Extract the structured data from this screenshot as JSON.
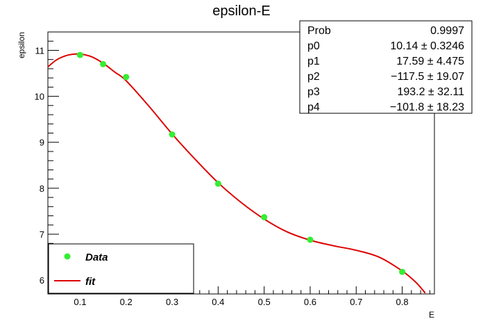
{
  "chart_data": {
    "type": "scatter",
    "title": "epsilon-E",
    "xlabel": "E",
    "ylabel": "epsilon",
    "xlim": [
      0.03,
      0.87
    ],
    "ylim": [
      5.7,
      11.4
    ],
    "x_ticks": [
      0.1,
      0.2,
      0.3,
      0.4,
      0.5,
      0.6,
      0.7,
      0.8
    ],
    "x_tick_labels": [
      "0.1",
      "0.2",
      "0.3",
      "0.4",
      "0.5",
      "0.6",
      "0.7",
      "0.8"
    ],
    "y_ticks": [
      6,
      7,
      8,
      9,
      10,
      11
    ],
    "y_tick_labels": [
      "6",
      "7",
      "8",
      "9",
      "10",
      "11"
    ],
    "grid": false,
    "series": [
      {
        "name": "Data",
        "kind": "markers",
        "color": "#33ee33",
        "x": [
          0.1,
          0.15,
          0.2,
          0.3,
          0.4,
          0.5,
          0.6,
          0.8
        ],
        "y": [
          10.9,
          10.7,
          10.42,
          9.17,
          8.1,
          7.37,
          6.88,
          6.18
        ]
      },
      {
        "name": "fit",
        "kind": "line",
        "color": "#dd0000",
        "x": [
          0.03,
          0.05,
          0.075,
          0.1,
          0.125,
          0.15,
          0.175,
          0.2,
          0.25,
          0.3,
          0.35,
          0.4,
          0.45,
          0.5,
          0.55,
          0.6,
          0.65,
          0.7,
          0.75,
          0.8,
          0.83,
          0.85
        ],
        "y": [
          10.64,
          10.8,
          10.9,
          10.92,
          10.86,
          10.72,
          10.53,
          10.34,
          9.78,
          9.18,
          8.63,
          8.12,
          7.69,
          7.33,
          7.05,
          6.87,
          6.75,
          6.65,
          6.5,
          6.2,
          5.95,
          5.72
        ]
      }
    ],
    "legend": {
      "placement": "bottom-left",
      "entries": [
        {
          "label": "Data",
          "kind": "marker",
          "color": "#33ee33"
        },
        {
          "label": "fit",
          "kind": "line",
          "color": "#dd0000"
        }
      ]
    },
    "stats_box": {
      "placement": "top-right",
      "rows": [
        {
          "name": "Prob",
          "value": "0.9997"
        },
        {
          "name": "p0",
          "value": "10.14 ± 0.3246"
        },
        {
          "name": "p1",
          "value": "17.59 ± 4.475"
        },
        {
          "name": "p2",
          "value": "−117.5 ± 19.07"
        },
        {
          "name": "p3",
          "value": "193.2 ± 32.11"
        },
        {
          "name": "p4",
          "value": "−101.8 ± 18.23"
        }
      ]
    }
  }
}
